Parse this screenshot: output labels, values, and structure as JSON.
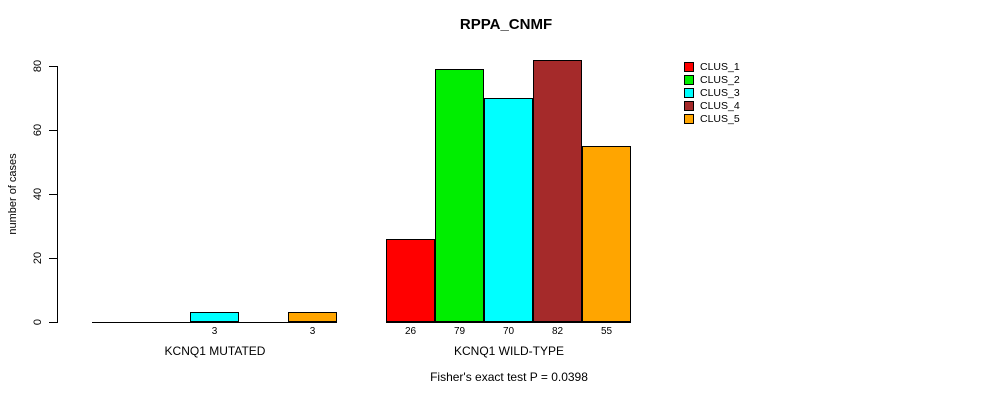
{
  "chart_data": {
    "type": "bar",
    "title": "RPPA_CNMF",
    "ylabel": "number of cases",
    "xlabel": "",
    "yticks": [
      0,
      20,
      40,
      60,
      80
    ],
    "ylim": [
      0,
      80
    ],
    "grid": false,
    "legend_position": "top-right",
    "clusters": [
      {
        "label": "CLUS_1",
        "color": "#FF0000"
      },
      {
        "label": "CLUS_2",
        "color": "#00EE00"
      },
      {
        "label": "CLUS_3",
        "color": "#00FFFF"
      },
      {
        "label": "CLUS_4",
        "color": "#A52A2A"
      },
      {
        "label": "CLUS_5",
        "color": "#FFA500"
      }
    ],
    "groups": [
      {
        "label": "KCNQ1 MUTATED",
        "values": [
          0,
          0,
          3,
          0,
          3
        ],
        "value_labels": [
          "",
          "",
          "3",
          "",
          "3"
        ]
      },
      {
        "label": "KCNQ1 WILD-TYPE",
        "values": [
          26,
          79,
          70,
          82,
          55
        ],
        "value_labels": [
          "26",
          "79",
          "70",
          "82",
          "55"
        ]
      }
    ],
    "footnote": "Fisher's exact test P = 0.0398"
  }
}
